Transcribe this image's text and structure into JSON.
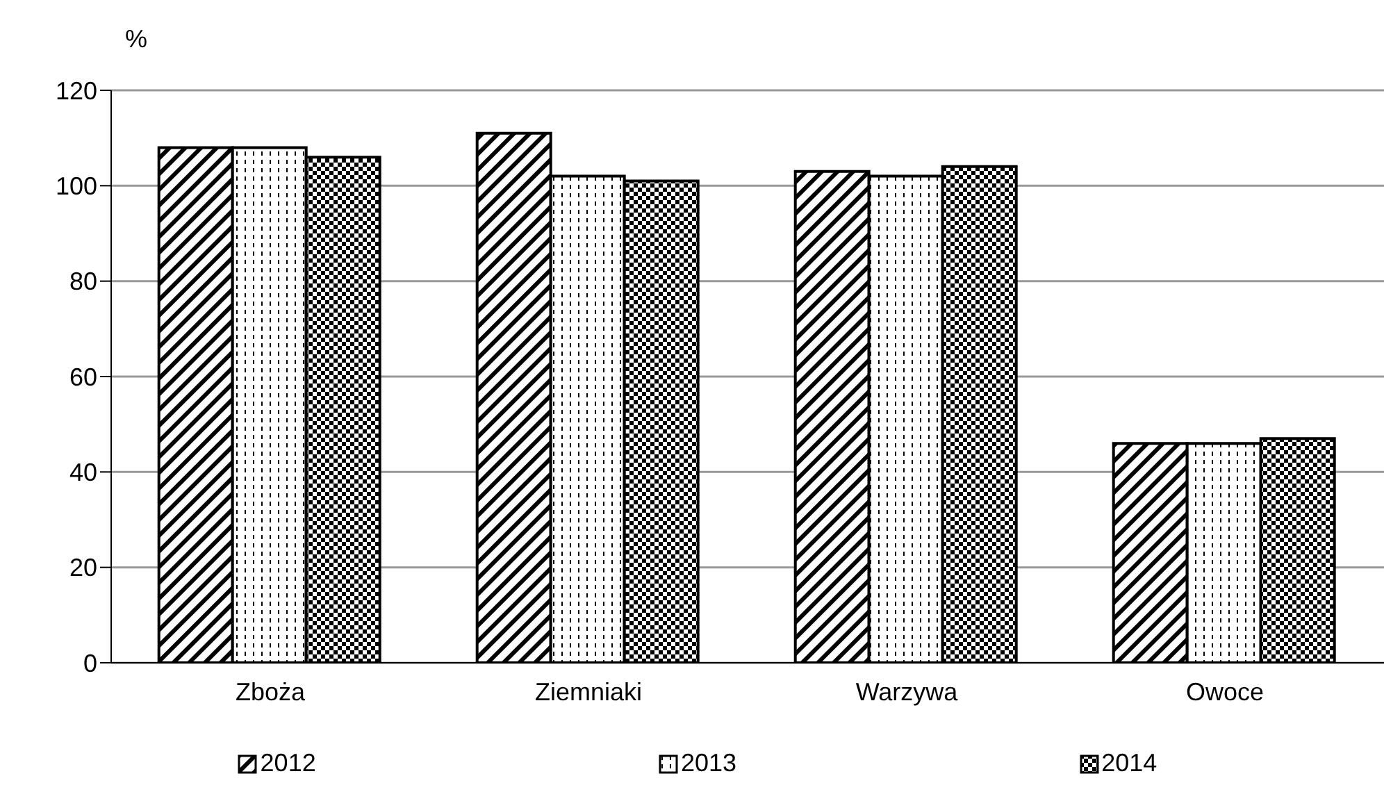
{
  "chart_data": {
    "type": "bar",
    "ylabel": "%",
    "categories": [
      "Zboża",
      "Ziemniaki",
      "Warzywa",
      "Owoce"
    ],
    "series": [
      {
        "name": "2012",
        "color": "#000000",
        "values": [
          108,
          111,
          103,
          46
        ]
      },
      {
        "name": "2013",
        "color": "#000000",
        "values": [
          108,
          102,
          102,
          46
        ]
      },
      {
        "name": "2014",
        "color": "#000000",
        "values": [
          106,
          101,
          104,
          47
        ]
      }
    ],
    "ylim": [
      0,
      120
    ],
    "yticks": [
      0,
      20,
      40,
      60,
      80,
      100,
      120
    ],
    "grid": "y",
    "legend": "bottom"
  }
}
